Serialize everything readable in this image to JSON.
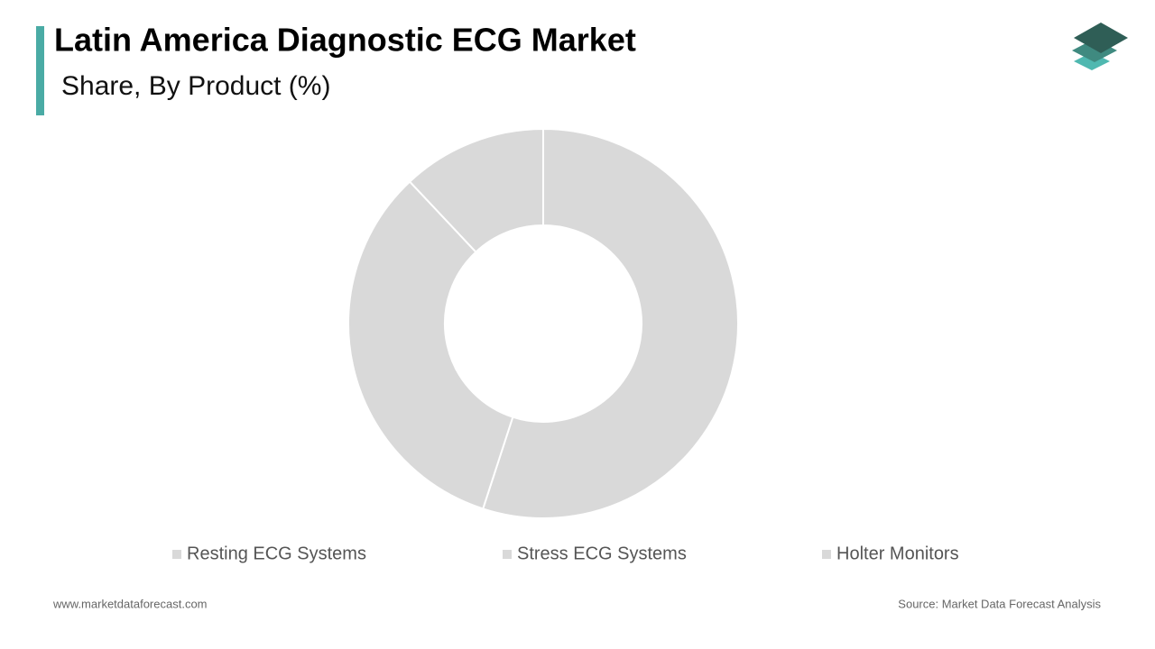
{
  "chart_data": {
    "type": "donut",
    "title": "Latin America Diagnostic ECG Market",
    "subtitle": "Share, By Product (%)",
    "categories": [
      "Resting ECG Systems",
      "Stress ECG Systems",
      "Holter Monitors"
    ],
    "values": [
      55,
      33,
      12
    ],
    "colors": [
      "#d9d9d9",
      "#d9d9d9",
      "#d9d9d9"
    ],
    "legend": "bottom",
    "footer_left": "www.marketdataforecast.com",
    "footer_right": "Source: Market Data Forecast Analysis"
  }
}
